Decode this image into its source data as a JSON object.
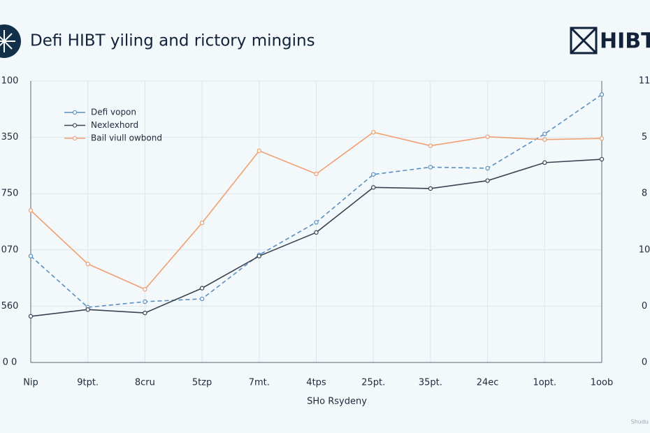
{
  "brand": "HIBT",
  "watermark": "Shudu",
  "chart_data": {
    "type": "line",
    "title": "Defi HIBT yiling and rictory mingins",
    "x_label": "SHo Rsydeny",
    "categories": [
      "Nip",
      "9tpt.",
      "8cru",
      "5tzp",
      "7mt.",
      "4tps",
      "25pt.",
      "35pt.",
      "24ec",
      "1opt.",
      "1oob"
    ],
    "ylim": [
      0,
      5
    ],
    "yticks": [
      {
        "value": 0,
        "label": "0 0"
      },
      {
        "value": 1,
        "label": "560"
      },
      {
        "value": 2,
        "label": "070"
      },
      {
        "value": 3,
        "label": "750"
      },
      {
        "value": 4,
        "label": "350"
      },
      {
        "value": 5,
        "label": "100"
      }
    ],
    "y2lim": [
      0,
      5
    ],
    "y2ticks": [
      {
        "value": 0,
        "label": "0"
      },
      {
        "value": 1,
        "label": "0"
      },
      {
        "value": 2,
        "label": "10"
      },
      {
        "value": 3,
        "label": "8"
      },
      {
        "value": 4,
        "label": "5"
      },
      {
        "value": 5,
        "label": "11"
      }
    ],
    "grid": true,
    "legend": "upper left",
    "series": [
      {
        "name": "Defi vopon",
        "color": "#5b8fc0",
        "dash": true,
        "values": [
          1.89,
          0.98,
          1.08,
          1.13,
          1.91,
          2.49,
          3.34,
          3.47,
          3.45,
          4.06,
          4.76
        ]
      },
      {
        "name": "Nexlexhord",
        "color": "#3a4350",
        "dash": false,
        "values": [
          0.82,
          0.94,
          0.88,
          1.32,
          1.89,
          2.31,
          3.11,
          3.09,
          3.23,
          3.55,
          3.61
        ]
      },
      {
        "name": "Bail viull owbond",
        "color": "#f0a070",
        "dash": false,
        "values": [
          2.7,
          1.75,
          1.3,
          2.48,
          3.76,
          3.35,
          4.09,
          3.85,
          4.01,
          3.96,
          3.98
        ]
      }
    ]
  }
}
